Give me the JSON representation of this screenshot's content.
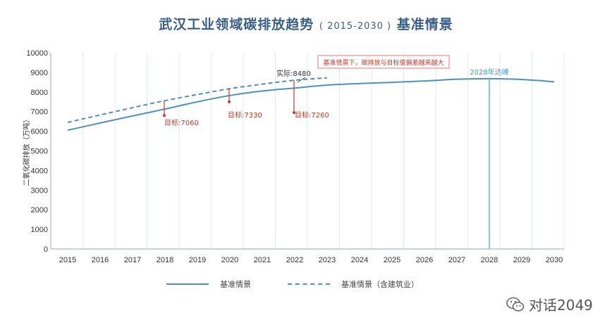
{
  "title_main_a": "武汉工业领域碳排放趋势",
  "title_sub": "( 2015-2030 )",
  "title_main_b": "基准情景",
  "watermark_text": "对话2049",
  "legend": {
    "items": [
      "基准情景",
      "基准情景（含建筑业）"
    ]
  },
  "chart_data": {
    "type": "line",
    "ylabel": "二氧化碳排放（万吨）",
    "ylim": [
      0,
      10000
    ],
    "yticks": [
      0,
      1000,
      2000,
      3000,
      4000,
      5000,
      6000,
      7000,
      8000,
      9000,
      10000
    ],
    "xlim": [
      2015,
      2030
    ],
    "xticks": [
      2015,
      2016,
      2017,
      2018,
      2019,
      2020,
      2021,
      2022,
      2023,
      2024,
      2025,
      2026,
      2027,
      2028,
      2029,
      2030
    ],
    "grid": "vertical",
    "series": [
      {
        "name": "基准情景",
        "style": "solid",
        "color": "#4e8fbd",
        "x": [
          2015,
          2016,
          2017,
          2018,
          2019,
          2020,
          2021,
          2022,
          2023,
          2024,
          2025,
          2026,
          2027,
          2028,
          2029,
          2030
        ],
        "y": [
          6050,
          6420,
          6780,
          7130,
          7500,
          7820,
          8050,
          8200,
          8350,
          8430,
          8490,
          8560,
          8650,
          8680,
          8640,
          8520
        ]
      },
      {
        "name": "基准情景（含建筑业）",
        "style": "dashed",
        "color": "#4e8fbd",
        "x": [
          2015,
          2016,
          2017,
          2018,
          2019,
          2020,
          2021,
          2022,
          2023
        ],
        "y": [
          6450,
          6830,
          7200,
          7560,
          7870,
          8170,
          8400,
          8600,
          8720
        ]
      }
    ],
    "annotations": [
      {
        "label": "目标:7060",
        "x": 2018,
        "color": "#c0392b"
      },
      {
        "label": "目标:7330",
        "x": 2020,
        "color": "#c0392b"
      },
      {
        "label": "目标:7260",
        "x": 2022,
        "color": "#c0392b"
      },
      {
        "label": "实际:8480",
        "x": 2022,
        "color": "#333333"
      },
      {
        "label": "2028年达峰",
        "x": 2028,
        "color": "#3aa0c8"
      },
      {
        "label": "基准情景下，碳排放与目标值偏差越来越大",
        "color": "#c0392b"
      }
    ]
  }
}
